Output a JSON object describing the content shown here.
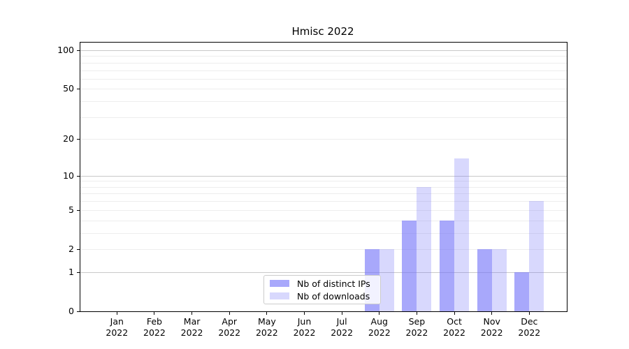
{
  "title": "Hmisc 2022",
  "legend": {
    "items": [
      {
        "label": "Nb of distinct IPs"
      },
      {
        "label": "Nb of downloads"
      }
    ]
  },
  "colors": {
    "bar_base": "#7272f8",
    "bar_dark_rendered": "#a9a9fa",
    "bar_light_rendered": "#d9d9fa",
    "grid_major": "#c9c9c9",
    "grid_minor": "#ededed",
    "axis": "#000000"
  },
  "chart_data": {
    "type": "bar",
    "title": "Hmisc 2022",
    "categories": [
      "Jan 2022",
      "Feb 2022",
      "Mar 2022",
      "Apr 2022",
      "May 2022",
      "Jun 2022",
      "Jul 2022",
      "Aug 2022",
      "Sep 2022",
      "Oct 2022",
      "Nov 2022",
      "Dec 2022"
    ],
    "x_tick_labels": [
      {
        "month": "Jan",
        "year": "2022"
      },
      {
        "month": "Feb",
        "year": "2022"
      },
      {
        "month": "Mar",
        "year": "2022"
      },
      {
        "month": "Apr",
        "year": "2022"
      },
      {
        "month": "May",
        "year": "2022"
      },
      {
        "month": "Jun",
        "year": "2022"
      },
      {
        "month": "Jul",
        "year": "2022"
      },
      {
        "month": "Aug",
        "year": "2022"
      },
      {
        "month": "Sep",
        "year": "2022"
      },
      {
        "month": "Oct",
        "year": "2022"
      },
      {
        "month": "Nov",
        "year": "2022"
      },
      {
        "month": "Dec",
        "year": "2022"
      }
    ],
    "series": [
      {
        "name": "Nb of distinct IPs",
        "color": "#7272f8",
        "opacity": 0.62,
        "values": [
          0,
          0,
          0,
          0,
          0,
          0,
          0,
          2,
          4,
          4,
          2,
          1
        ]
      },
      {
        "name": "Nb of downloads",
        "color": "#7272f8",
        "opacity": 0.28,
        "values": [
          0,
          0,
          0,
          0,
          0,
          0,
          0,
          2,
          8,
          14,
          2,
          6
        ]
      }
    ],
    "yscale": "log10(value+1)",
    "y_ticks": [
      0,
      1,
      2,
      5,
      10,
      20,
      50,
      100
    ],
    "ylim": [
      0,
      113
    ],
    "xlabel": "",
    "ylabel": "",
    "grid": true,
    "legend_position": "lower center"
  }
}
